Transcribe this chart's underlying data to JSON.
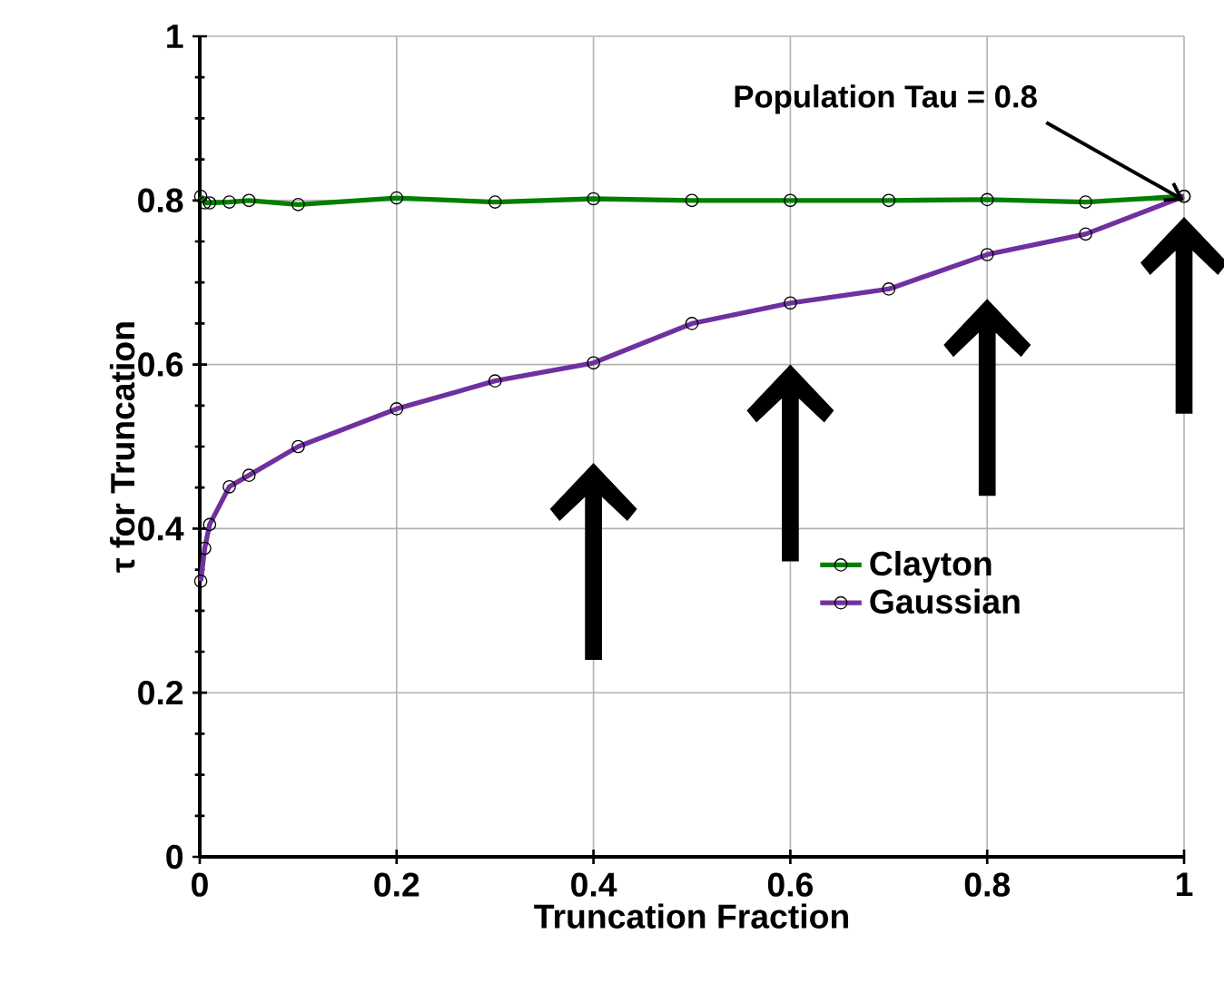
{
  "chart_data": {
    "type": "line",
    "xlabel": "Truncation Fraction",
    "ylabel": "τ for Truncation",
    "x": [
      0.001,
      0.005,
      0.01,
      0.03,
      0.05,
      0.1,
      0.2,
      0.3,
      0.4,
      0.5,
      0.6,
      0.7,
      0.8,
      0.9,
      1.0
    ],
    "series": [
      {
        "name": "Clayton",
        "color": "#008000",
        "values": [
          0.805,
          0.797,
          0.797,
          0.798,
          0.8,
          0.795,
          0.803,
          0.798,
          0.802,
          0.8,
          0.8,
          0.8,
          0.801,
          0.798,
          0.805
        ]
      },
      {
        "name": "Gaussian",
        "color": "#7030a0",
        "values": [
          0.336,
          0.376,
          0.405,
          0.451,
          0.465,
          0.5,
          0.546,
          0.58,
          0.602,
          0.65,
          0.675,
          0.692,
          0.734,
          0.759,
          0.805
        ]
      }
    ],
    "xlim": [
      0,
      1
    ],
    "ylim": [
      0,
      1
    ],
    "xticks": [
      0,
      0.2,
      0.4,
      0.6,
      0.8,
      1
    ],
    "yticks": [
      0,
      0.2,
      0.4,
      0.6,
      0.8,
      1
    ],
    "grid": true,
    "legend": "center right",
    "marker": "circle",
    "line_style": "solid",
    "annotations": [
      {
        "text": "Population Tau = 0.8",
        "x": 1,
        "y": 0.8
      }
    ]
  }
}
